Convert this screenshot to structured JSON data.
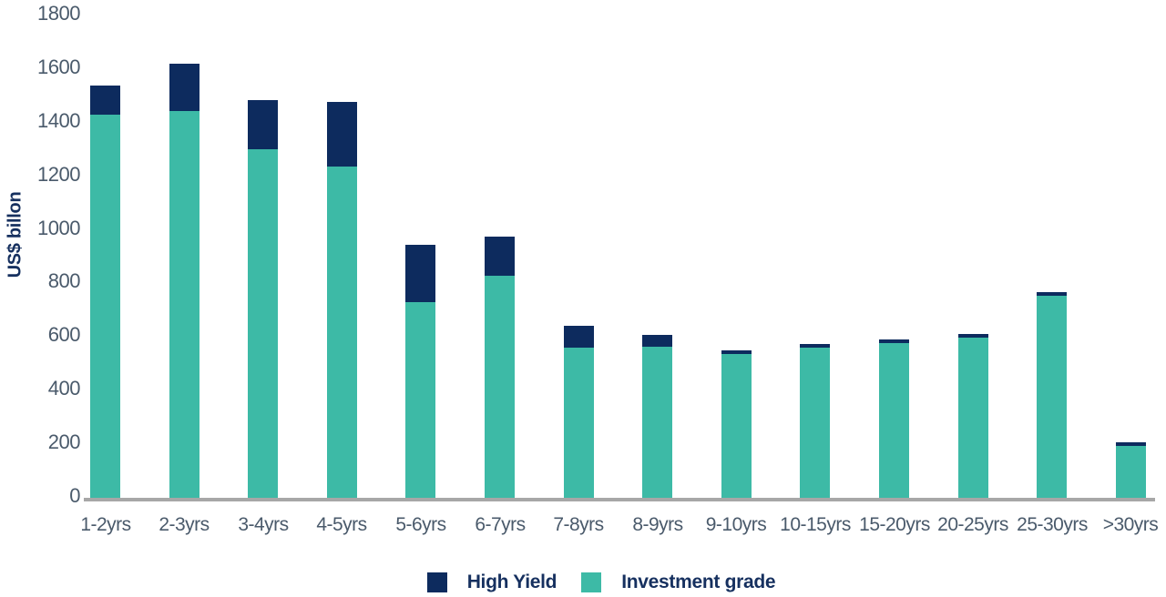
{
  "chart_data": {
    "type": "bar",
    "stacked": true,
    "title": "",
    "xlabel": "",
    "ylabel": "US$ billon",
    "ylim": [
      0,
      1800
    ],
    "yticks": [
      0,
      200,
      400,
      600,
      800,
      1000,
      1200,
      1400,
      1600,
      1800
    ],
    "grid": false,
    "legend_position": "bottom",
    "categories": [
      "1-2yrs",
      "2-3yrs",
      "3-4yrs",
      "4-5yrs",
      "5-6yrs",
      "6-7yrs",
      "7-8yrs",
      "8-9yrs",
      "9-10yrs",
      "10-15yrs",
      "15-20yrs",
      "20-25yrs",
      "25-30yrs",
      ">30yrs"
    ],
    "series": [
      {
        "name": "High Yield",
        "color": "#0d2b5e",
        "values": [
          110,
          175,
          185,
          240,
          215,
          145,
          80,
          45,
          15,
          15,
          14,
          14,
          14,
          13
        ]
      },
      {
        "name": "Investment grade",
        "color": "#3dbaa6",
        "values": [
          1430,
          1445,
          1300,
          1235,
          730,
          830,
          560,
          565,
          535,
          560,
          578,
          598,
          753,
          195
        ]
      }
    ]
  },
  "colors": {
    "high_yield": "#0d2b5e",
    "investment_grade": "#3dbaa6",
    "axis_line": "#a7a7a7",
    "tick_text": "#4a5a6b",
    "label_text": "#16305f"
  }
}
